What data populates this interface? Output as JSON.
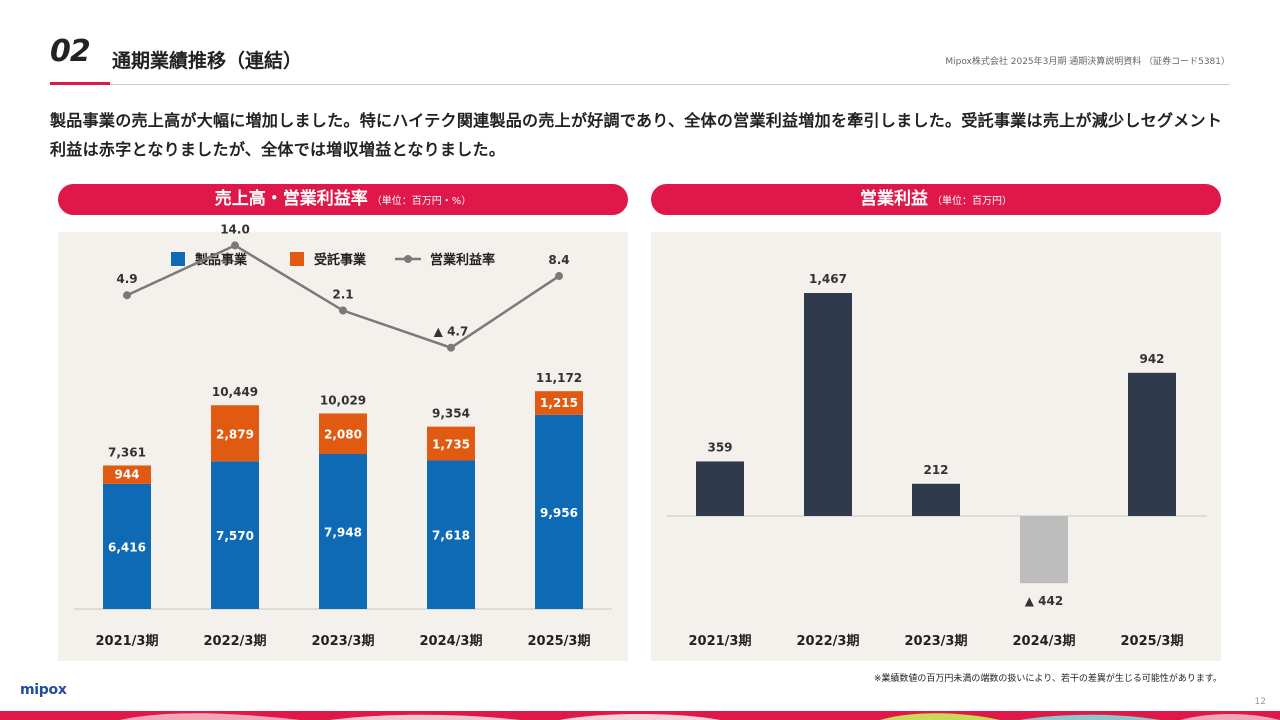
{
  "header": {
    "section_number": "02",
    "title": "通期業績推移（連結）",
    "meta": "Mipox株式会社 2025年3月期 通期決算説明資料 （証券コード5381）"
  },
  "summary": "製品事業の売上高が大幅に増加しました。特にハイテク関連製品の売上が好調であり、全体の営業利益増加を牽引しました。受託事業は売上が減少しセグメント利益は赤字となりましたが、全体では増収増益となりました。",
  "left_panel": {
    "title": "売上高・営業利益率",
    "unit": "（単位：百万円・%）"
  },
  "right_panel": {
    "title": "営業利益",
    "unit": "（単位：百万円）"
  },
  "footnote": "※業績数値の百万円未満の端数の扱いにより、若干の差異が生じる可能性があります。",
  "logo": "mipox",
  "page_number": "12",
  "colors": {
    "accent": "#e0184a",
    "product": "#0e6ab4",
    "contract": "#e05a12",
    "margin_line": "#7a7a7a",
    "profit": "#2f3a4c",
    "loss": "#bdbdbd",
    "panel_bg": "#f4f1ec"
  },
  "chart_data": [
    {
      "type": "bar",
      "stacked": true,
      "categories": [
        "2021/3期",
        "2022/3期",
        "2023/3期",
        "2024/3期",
        "2025/3期"
      ],
      "series": [
        {
          "name": "製品事業",
          "values": [
            6416,
            7570,
            7948,
            7618,
            9956
          ],
          "labels": [
            "6,416",
            "7,570",
            "7,948",
            "7,618",
            "9,956"
          ]
        },
        {
          "name": "受託事業",
          "values": [
            944,
            2879,
            2080,
            1735,
            1215
          ],
          "labels": [
            "944",
            "2,879",
            "2,080",
            "1,735",
            "1,215"
          ]
        }
      ],
      "totals": [
        7361,
        10449,
        10029,
        9354,
        11172
      ],
      "total_labels": [
        "7,361",
        "10,449",
        "10,029",
        "9,354",
        "11,172"
      ],
      "line_series": {
        "name": "営業利益率",
        "values": [
          4.9,
          14.0,
          2.1,
          -4.7,
          8.4
        ],
        "labels": [
          "4.9",
          "14.0",
          "2.1",
          "▲ 4.7",
          "8.4"
        ]
      },
      "legend": "top",
      "grid": false
    },
    {
      "type": "bar",
      "categories": [
        "2021/3期",
        "2022/3期",
        "2023/3期",
        "2024/3期",
        "2025/3期"
      ],
      "series": [
        {
          "name": "営業利益",
          "values": [
            359,
            1467,
            212,
            -442,
            942
          ],
          "labels": [
            "359",
            "1,467",
            "212",
            "▲ 442",
            "942"
          ]
        }
      ],
      "grid": false
    }
  ]
}
